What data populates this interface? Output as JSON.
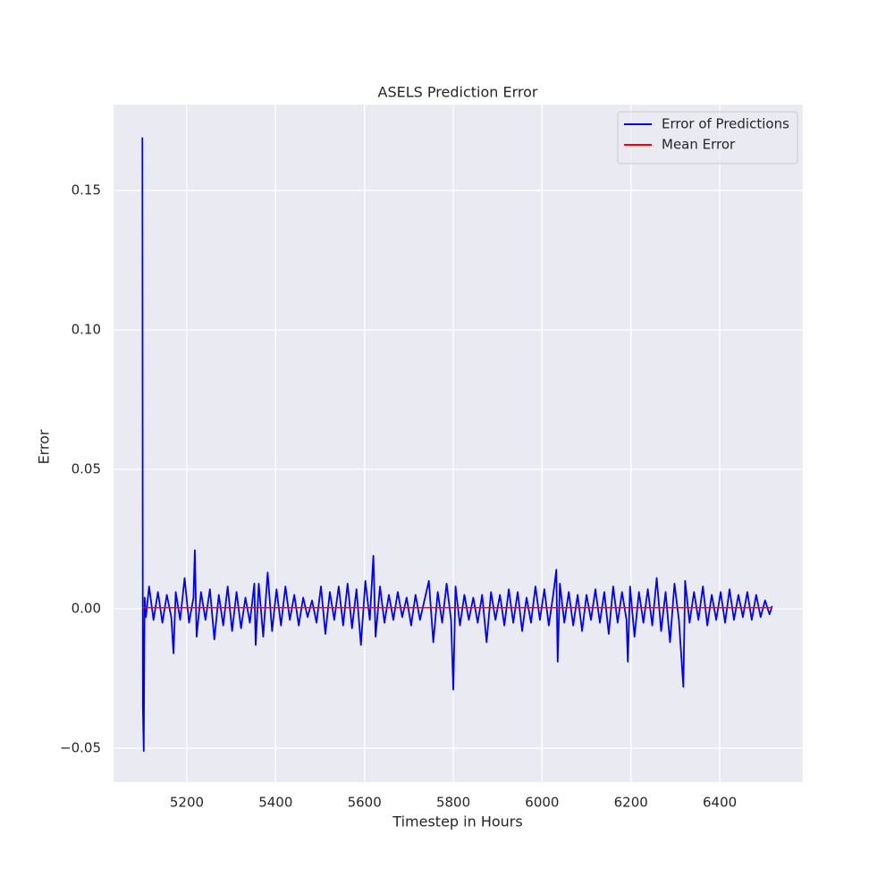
{
  "chart_data": {
    "type": "line",
    "title": "ASELS Prediction Error",
    "xlabel": "Timestep in Hours",
    "ylabel": "Error",
    "x": [
      5100,
      5101,
      5103,
      5105,
      5108,
      5115,
      5125,
      5135,
      5145,
      5155,
      5165,
      5170,
      5175,
      5185,
      5195,
      5205,
      5215,
      5218,
      5222,
      5232,
      5242,
      5252,
      5262,
      5272,
      5282,
      5292,
      5302,
      5312,
      5322,
      5332,
      5342,
      5352,
      5355,
      5362,
      5372,
      5382,
      5392,
      5402,
      5412,
      5422,
      5432,
      5442,
      5452,
      5462,
      5472,
      5482,
      5492,
      5502,
      5512,
      5522,
      5532,
      5542,
      5552,
      5562,
      5572,
      5582,
      5592,
      5602,
      5612,
      5620,
      5625,
      5635,
      5645,
      5655,
      5665,
      5675,
      5685,
      5695,
      5705,
      5715,
      5725,
      5735,
      5745,
      5755,
      5765,
      5775,
      5785,
      5795,
      5800,
      5805,
      5815,
      5825,
      5835,
      5845,
      5855,
      5865,
      5875,
      5885,
      5895,
      5905,
      5915,
      5925,
      5935,
      5945,
      5955,
      5965,
      5975,
      5985,
      5995,
      6005,
      6015,
      6025,
      6032,
      6035,
      6040,
      6050,
      6060,
      6070,
      6080,
      6090,
      6100,
      6110,
      6120,
      6130,
      6140,
      6150,
      6160,
      6170,
      6180,
      6190,
      6193,
      6198,
      6208,
      6218,
      6228,
      6238,
      6248,
      6258,
      6268,
      6278,
      6288,
      6298,
      6308,
      6318,
      6322,
      6332,
      6342,
      6352,
      6362,
      6372,
      6382,
      6392,
      6402,
      6412,
      6422,
      6432,
      6442,
      6452,
      6462,
      6472,
      6482,
      6492,
      6502,
      6512,
      6518
    ],
    "series": [
      {
        "name": "Error of Predictions",
        "color": "#0000ff",
        "values": [
          0.169,
          -0.035,
          -0.051,
          0.004,
          -0.003,
          0.008,
          -0.004,
          0.006,
          -0.005,
          0.005,
          -0.003,
          -0.016,
          0.006,
          -0.004,
          0.011,
          -0.005,
          0.004,
          0.021,
          -0.01,
          0.006,
          -0.004,
          0.007,
          -0.011,
          0.005,
          -0.006,
          0.008,
          -0.008,
          0.006,
          -0.007,
          0.004,
          -0.005,
          0.009,
          -0.013,
          0.009,
          -0.01,
          0.013,
          -0.008,
          0.007,
          -0.006,
          0.008,
          -0.004,
          0.005,
          -0.006,
          0.004,
          -0.003,
          0.003,
          -0.005,
          0.008,
          -0.009,
          0.006,
          -0.004,
          0.008,
          -0.006,
          0.009,
          -0.007,
          0.007,
          -0.013,
          0.01,
          -0.004,
          0.019,
          -0.01,
          0.008,
          -0.005,
          0.005,
          -0.004,
          0.006,
          -0.003,
          0.004,
          -0.006,
          0.005,
          -0.004,
          0.003,
          0.01,
          -0.012,
          0.006,
          -0.005,
          0.009,
          -0.004,
          -0.029,
          0.008,
          -0.006,
          0.005,
          -0.004,
          0.004,
          -0.005,
          0.005,
          -0.012,
          0.006,
          -0.004,
          0.005,
          -0.006,
          0.007,
          -0.005,
          0.006,
          -0.008,
          0.004,
          -0.005,
          0.008,
          -0.004,
          0.007,
          -0.006,
          0.005,
          0.014,
          -0.019,
          0.009,
          -0.005,
          0.006,
          -0.006,
          0.005,
          -0.008,
          0.005,
          -0.004,
          0.007,
          -0.005,
          0.006,
          -0.009,
          0.008,
          -0.005,
          0.006,
          -0.004,
          -0.019,
          0.008,
          -0.01,
          0.006,
          -0.005,
          0.007,
          -0.006,
          0.011,
          -0.008,
          0.006,
          -0.012,
          0.009,
          -0.004,
          -0.028,
          0.01,
          -0.005,
          0.006,
          -0.004,
          0.008,
          -0.006,
          0.005,
          -0.004,
          0.006,
          -0.005,
          0.007,
          -0.004,
          0.005,
          -0.003,
          0.006,
          -0.004,
          0.005,
          -0.003,
          0.003,
          -0.002,
          0.001
        ]
      }
    ],
    "hlines": [
      {
        "name": "Mean Error",
        "color": "#ff0000",
        "value": 0.0004
      }
    ],
    "xlim": [
      5035,
      6587
    ],
    "ylim": [
      -0.0622,
      0.1808
    ],
    "xticks": [
      5200,
      5400,
      5600,
      5800,
      6000,
      6200,
      6400
    ],
    "yticks": [
      {
        "value": -0.05,
        "label": "−0.05"
      },
      {
        "value": 0,
        "label": "0.00"
      },
      {
        "value": 0.05,
        "label": "0.05"
      },
      {
        "value": 0.1,
        "label": "0.10"
      },
      {
        "value": 0.15,
        "label": "0.15"
      }
    ],
    "grid": true,
    "legend": "upper right"
  }
}
